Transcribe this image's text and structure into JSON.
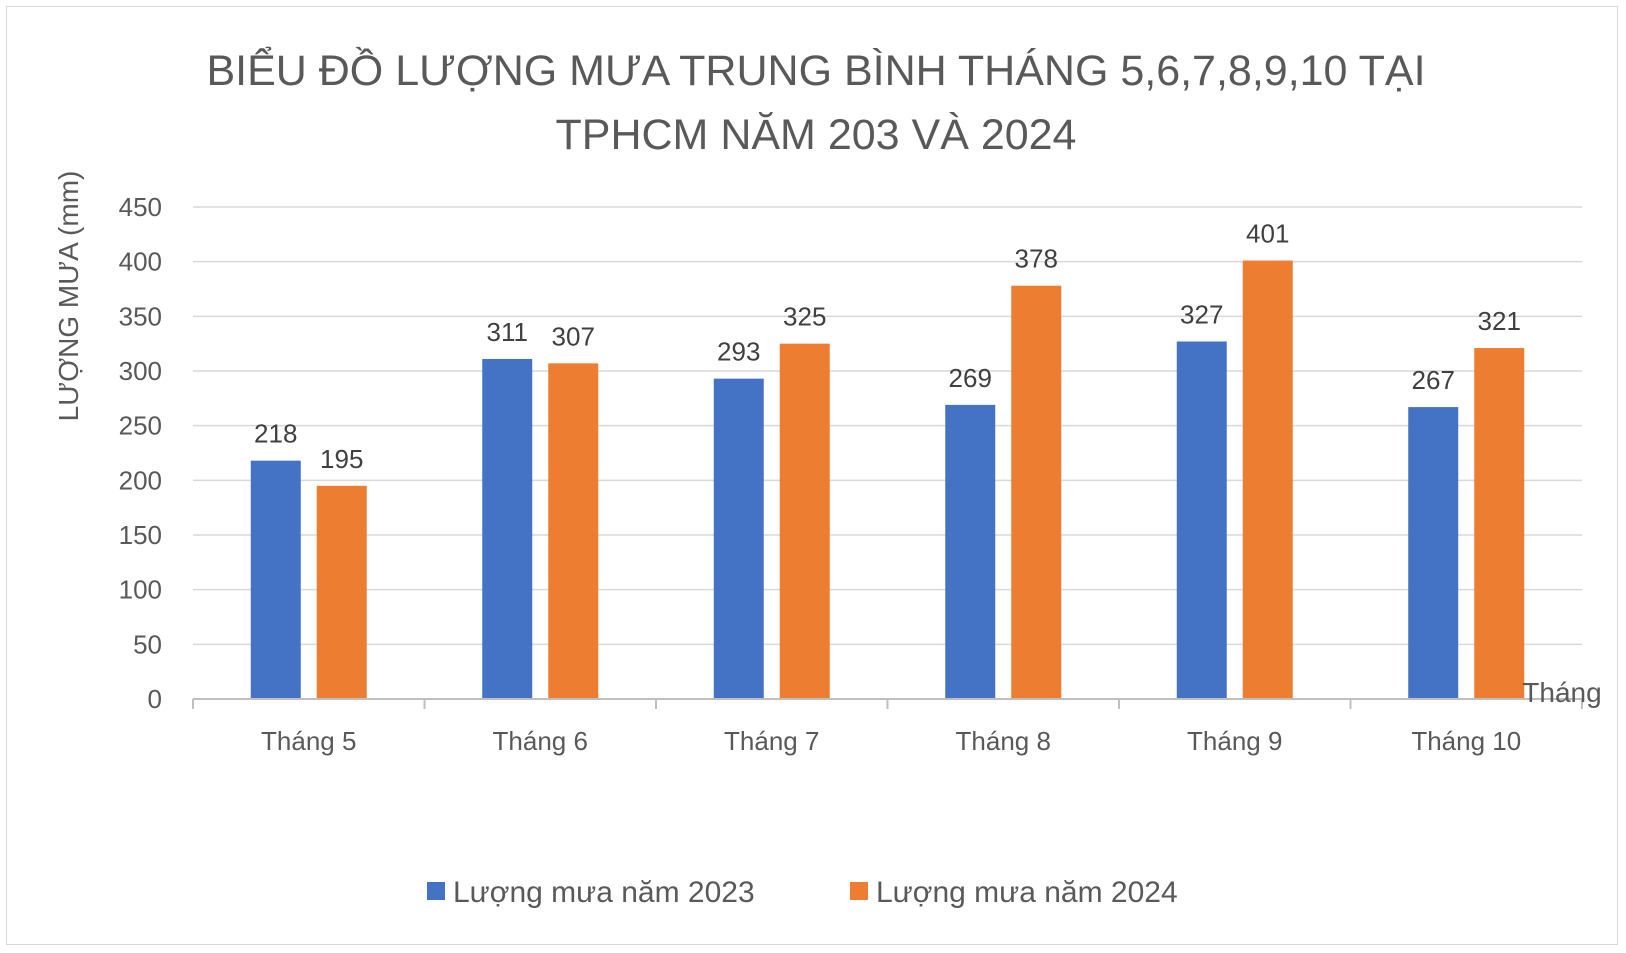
{
  "chart_data": {
    "type": "bar",
    "title_lines": [
      "BIỂU ĐỒ LƯỢNG MƯA TRUNG BÌNH THÁNG 5,6,7,8,9,10 TẠI",
      "TPHCM NĂM 203 VÀ 2024"
    ],
    "xlabel": "Tháng",
    "ylabel": "LƯỢNG MƯA (mm)",
    "ylim": [
      0,
      450
    ],
    "yticks": [
      0,
      50,
      100,
      150,
      200,
      250,
      300,
      350,
      400,
      450
    ],
    "categories": [
      "Tháng 5",
      "Tháng 6",
      "Tháng 7",
      "Tháng 8",
      "Tháng 9",
      "Tháng 10"
    ],
    "series": [
      {
        "name": "Lượng mưa năm 2023",
        "color": "#4472c4",
        "values": [
          218,
          311,
          293,
          269,
          327,
          267
        ]
      },
      {
        "name": "Lượng mưa năm 2024",
        "color": "#ed7d31",
        "values": [
          195,
          307,
          325,
          378,
          401,
          321
        ]
      }
    ],
    "grid": true,
    "data_labels": true,
    "legend_position": "bottom"
  }
}
